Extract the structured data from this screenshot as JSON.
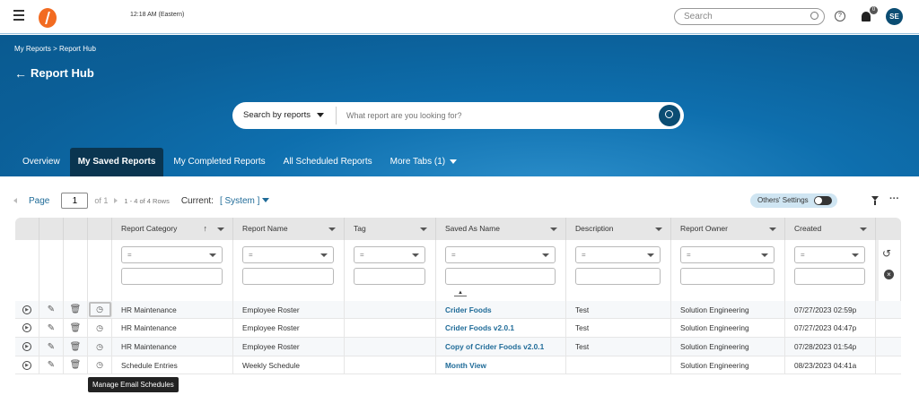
{
  "header": {
    "time": "12:18 AM (Eastern)",
    "search_placeholder": "Search",
    "notification_count": "0",
    "avatar_initials": "SE"
  },
  "colors": {
    "banner": "#0b5f98",
    "active_tab": "#0a3550",
    "link": "#1f6b98",
    "highlight": "#f2c21b",
    "brand": "#f26b21"
  },
  "breadcrumb": "My Reports > Report Hub",
  "page_title": "Report Hub",
  "hub_search": {
    "mode": "Search by reports",
    "placeholder": "What report are you looking for?"
  },
  "tabs": [
    {
      "label": "Overview"
    },
    {
      "label": "My Saved Reports",
      "active": true
    },
    {
      "label": "My Completed Reports"
    },
    {
      "label": "All Scheduled Reports"
    },
    {
      "label": "More Tabs (1)"
    }
  ],
  "pager": {
    "page_label": "Page",
    "page": "1",
    "of": "of 1",
    "rows": "1 - 4 of 4 Rows",
    "current_label": "Current:",
    "current_value": "[ System ]"
  },
  "others_settings": "Others' Settings",
  "columns": [
    {
      "label": "Report Category"
    },
    {
      "label": "Report Name"
    },
    {
      "label": "Tag"
    },
    {
      "label": "Saved As Name"
    },
    {
      "label": "Description"
    },
    {
      "label": "Report Owner"
    },
    {
      "label": "Created"
    }
  ],
  "filter_value": "=",
  "rows": [
    [
      "HR Maintenance",
      "Employee Roster",
      "",
      "Crider Foods",
      "Test",
      "Solution Engineering",
      "07/27/2023 02:59p"
    ],
    [
      "HR Maintenance",
      "Employee Roster",
      "",
      "Crider Foods v2.0.1",
      "Test",
      "Solution Engineering",
      "07/27/2023 04:47p"
    ],
    [
      "HR Maintenance",
      "Employee Roster",
      "",
      "Copy of Crider Foods v2.0.1",
      "Test",
      "Solution Engineering",
      "07/28/2023 01:54p"
    ],
    [
      "Schedule Entries",
      "Weekly Schedule",
      "",
      "Month View",
      "",
      "Solution Engineering",
      "08/23/2023 04:41a"
    ]
  ],
  "tooltip": "Manage Email Schedules"
}
